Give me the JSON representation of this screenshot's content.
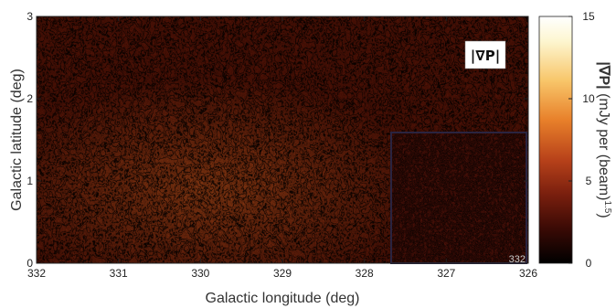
{
  "chart_data": {
    "type": "heatmap",
    "title": "",
    "panel_label": "|∇P|",
    "xlabel": "Galactic longitude (deg)",
    "ylabel": "Galactic latitude (deg)",
    "colorbar_label_main": "|∇P|",
    "colorbar_label_rest": " (mJy per (beam)",
    "colorbar_label_exp": "1.5",
    "colorbar_label_close": ")",
    "xlim": [
      332,
      326
    ],
    "ylim": [
      0,
      3
    ],
    "clim": [
      0,
      15
    ],
    "x_ticks": [
      332,
      331,
      330,
      329,
      328,
      327,
      326
    ],
    "x_tick_labels": [
      "332",
      "331",
      "330",
      "329",
      "328",
      "327",
      "326"
    ],
    "y_ticks": [
      0,
      1,
      2,
      3
    ],
    "y_tick_labels": [
      "0",
      "1",
      "2",
      "3"
    ],
    "c_ticks": [
      0,
      5,
      10,
      15
    ],
    "c_tick_labels": [
      "0",
      "5",
      "10",
      "15"
    ],
    "colormap": [
      "#000000",
      "#3a0a05",
      "#7a1f0e",
      "#b8421a",
      "#e8802a",
      "#f8c66a",
      "#fdf6d0",
      "#ffffff"
    ],
    "inset": {
      "label": "332",
      "x_range": [
        328.3,
        326
      ],
      "y_range": [
        0,
        1.6
      ],
      "frame_color": "#2a2440"
    }
  }
}
